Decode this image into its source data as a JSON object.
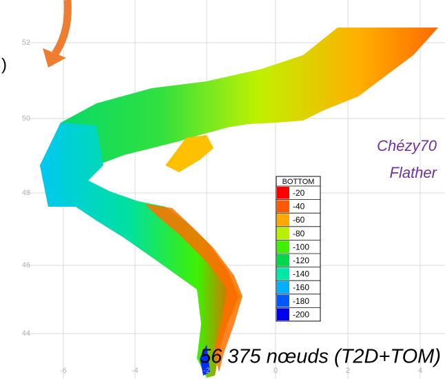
{
  "edge_text": ")",
  "axes": {
    "y_labels": [
      "52",
      "50",
      "48",
      "46",
      "44"
    ],
    "x_labels": [
      "-6",
      "-4",
      "-2",
      "0",
      "2",
      "4"
    ]
  },
  "legend": {
    "title": "BOTTOM",
    "entries": [
      {
        "label": "-20",
        "color": "#ff0000"
      },
      {
        "label": "-40",
        "color": "#ff5a00"
      },
      {
        "label": "-60",
        "color": "#ffa800"
      },
      {
        "label": "-80",
        "color": "#b8f000"
      },
      {
        "label": "-100",
        "color": "#40f000"
      },
      {
        "label": "-120",
        "color": "#00d84a"
      },
      {
        "label": "-140",
        "color": "#00e8a8"
      },
      {
        "label": "-160",
        "color": "#00b0ff"
      },
      {
        "label": "-180",
        "color": "#0058ff"
      },
      {
        "label": "-200",
        "color": "#0000f0"
      }
    ]
  },
  "notes": {
    "friction": "Chézy70",
    "boundary": "Flather",
    "mesh": "56 375 nœuds (T2D+TOM)"
  }
}
